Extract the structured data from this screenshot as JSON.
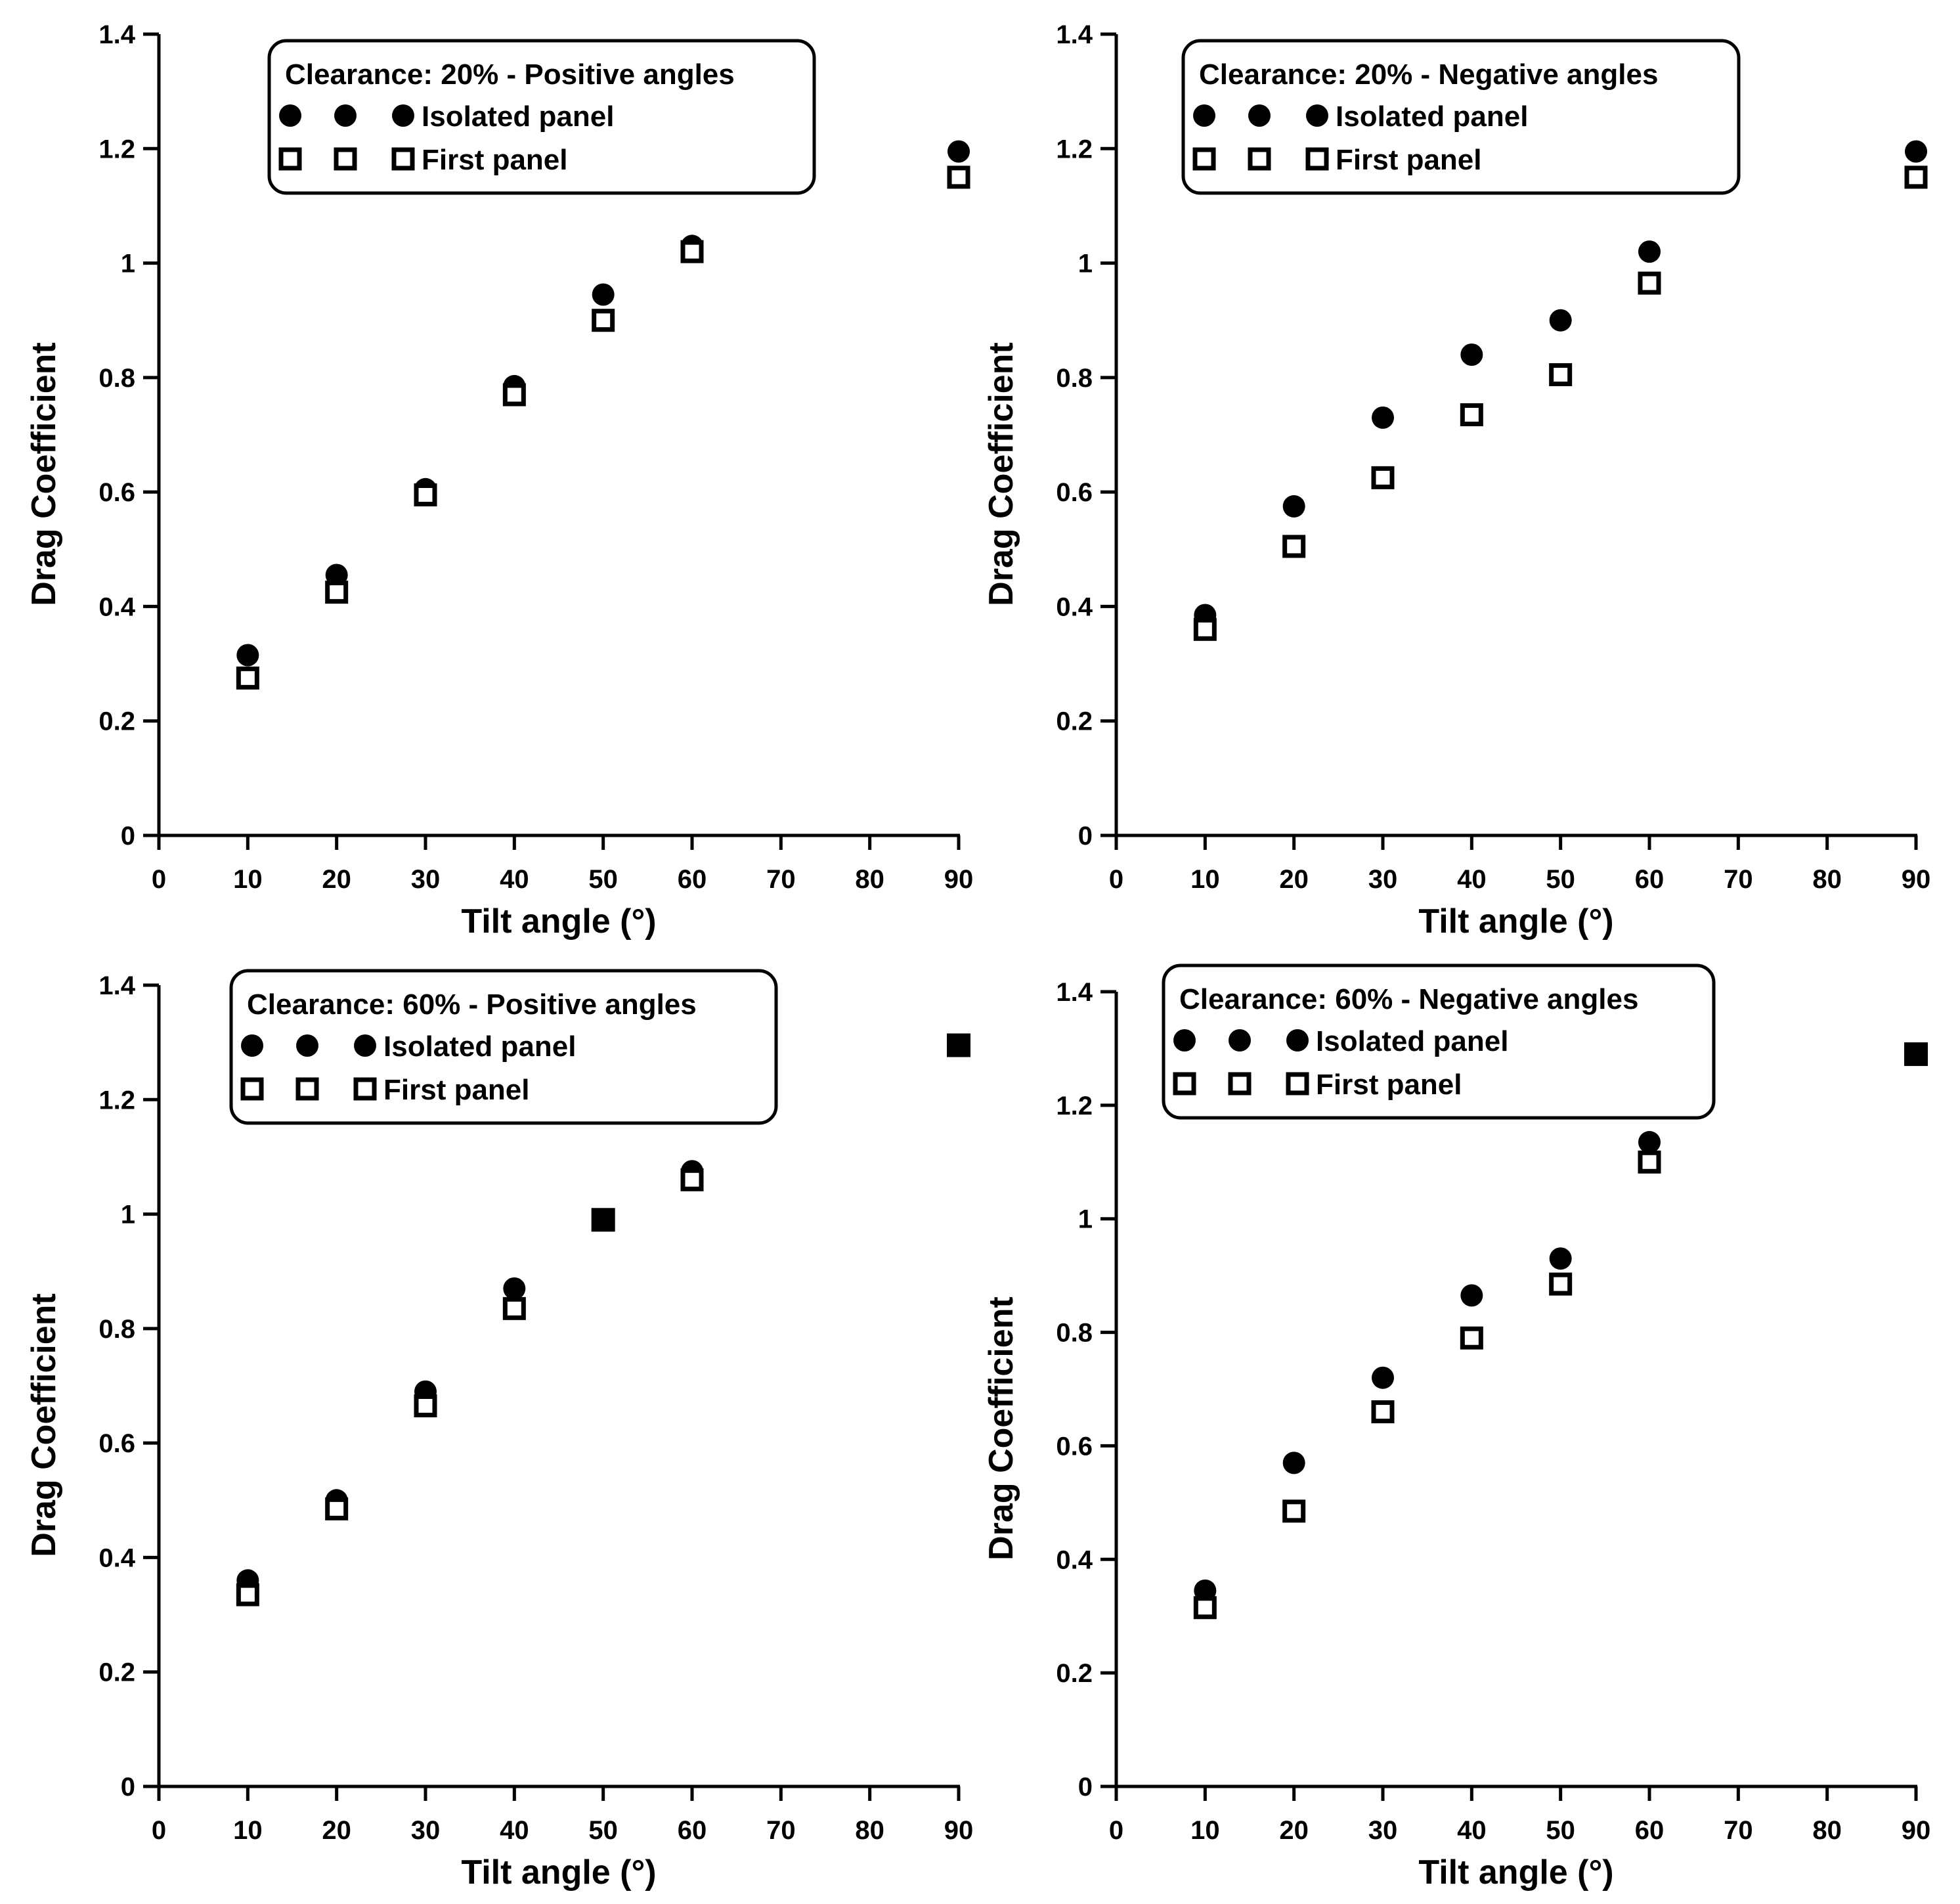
{
  "figure": {
    "colors": {
      "marker": "#000000",
      "background": "#ffffff"
    },
    "series_markers": {
      "Isolated panel": "filled-circle",
      "First panel": "open-square"
    }
  },
  "chart_data": [
    {
      "type": "scatter",
      "legend_title": "Clearance: 20% - Positive angles",
      "xlabel": "Tilt angle (°)",
      "ylabel": "Drag Coefficient",
      "xlim": [
        0,
        90
      ],
      "ylim": [
        0,
        1.4
      ],
      "x_ticks": [
        "0",
        "10",
        "20",
        "30",
        "40",
        "50",
        "60",
        "70",
        "80",
        "90"
      ],
      "y_ticks": [
        "0",
        "0.2",
        "0.4",
        "0.6",
        "0.8",
        "1",
        "1.2",
        "1.4"
      ],
      "legend_position": "top-center",
      "grid": false,
      "series": [
        {
          "name": "Isolated panel",
          "marker": "filled-circle",
          "x": [
            10,
            20,
            30,
            40,
            50,
            60,
            90
          ],
          "y": [
            0.315,
            0.455,
            0.605,
            0.785,
            0.945,
            1.03,
            1.195
          ]
        },
        {
          "name": "First panel",
          "marker": "open-square",
          "x": [
            10,
            20,
            30,
            40,
            50,
            60,
            90
          ],
          "y": [
            0.275,
            0.425,
            0.595,
            0.77,
            0.9,
            1.02,
            1.15
          ]
        }
      ]
    },
    {
      "type": "scatter",
      "legend_title": "Clearance: 20% - Negative angles",
      "xlabel": "Tilt angle (°)",
      "ylabel": "Drag Coefficient",
      "xlim": [
        0,
        90
      ],
      "ylim": [
        0,
        1.4
      ],
      "x_ticks": [
        "0",
        "10",
        "20",
        "30",
        "40",
        "50",
        "60",
        "70",
        "80",
        "90"
      ],
      "y_ticks": [
        "0",
        "0.2",
        "0.4",
        "0.6",
        "0.8",
        "1",
        "1.2",
        "1.4"
      ],
      "legend_position": "top-center",
      "grid": false,
      "series": [
        {
          "name": "Isolated panel",
          "marker": "filled-circle",
          "x": [
            10,
            20,
            30,
            40,
            50,
            60,
            90
          ],
          "y": [
            0.385,
            0.575,
            0.73,
            0.84,
            0.9,
            1.02,
            1.195
          ]
        },
        {
          "name": "First panel",
          "marker": "open-square",
          "x": [
            10,
            20,
            30,
            40,
            50,
            60,
            90
          ],
          "y": [
            0.36,
            0.505,
            0.625,
            0.735,
            0.805,
            0.965,
            1.15
          ]
        }
      ]
    },
    {
      "type": "scatter",
      "legend_title": "Clearance: 60% - Positive angles",
      "xlabel": "Tilt angle (°)",
      "ylabel": "Drag Coefficient",
      "xlim": [
        0,
        90
      ],
      "ylim": [
        0,
        1.4
      ],
      "x_ticks": [
        "0",
        "10",
        "20",
        "30",
        "40",
        "50",
        "60",
        "70",
        "80",
        "90"
      ],
      "y_ticks": [
        "0",
        "0.2",
        "0.4",
        "0.6",
        "0.8",
        "1",
        "1.2",
        "1.4"
      ],
      "legend_position": "top-center",
      "grid": false,
      "series": [
        {
          "name": "Isolated panel",
          "marker": "filled-circle",
          "x": [
            10,
            20,
            30,
            40,
            50,
            60,
            90
          ],
          "y": [
            0.36,
            0.5,
            0.69,
            0.87,
            0.99,
            1.075,
            1.295
          ]
        },
        {
          "name": "First panel",
          "marker": "open-square",
          "x": [
            10,
            20,
            30,
            40,
            50,
            60,
            90
          ],
          "y": [
            0.335,
            0.485,
            0.665,
            0.835,
            0.99,
            1.06,
            1.295
          ]
        }
      ]
    },
    {
      "type": "scatter",
      "legend_title": "Clearance: 60% - Negative angles",
      "xlabel": "Tilt angle (°)",
      "ylabel": "Drag Coefficient",
      "xlim": [
        0,
        90
      ],
      "ylim": [
        0,
        1.4
      ],
      "x_ticks": [
        "0",
        "10",
        "20",
        "30",
        "40",
        "50",
        "60",
        "70",
        "80",
        "90"
      ],
      "y_ticks": [
        "0",
        "0.2",
        "0.4",
        "0.6",
        "0.8",
        "1",
        "1.2",
        "1.4"
      ],
      "legend_position": "top-center",
      "grid": false,
      "series": [
        {
          "name": "Isolated panel",
          "marker": "filled-circle",
          "x": [
            10,
            20,
            30,
            40,
            50,
            60,
            90
          ],
          "y": [
            0.345,
            0.57,
            0.72,
            0.865,
            0.93,
            1.135,
            1.29
          ]
        },
        {
          "name": "First panel",
          "marker": "open-square",
          "x": [
            10,
            20,
            30,
            40,
            50,
            60,
            90
          ],
          "y": [
            0.315,
            0.485,
            0.66,
            0.79,
            0.885,
            1.1,
            1.29
          ]
        }
      ]
    }
  ]
}
